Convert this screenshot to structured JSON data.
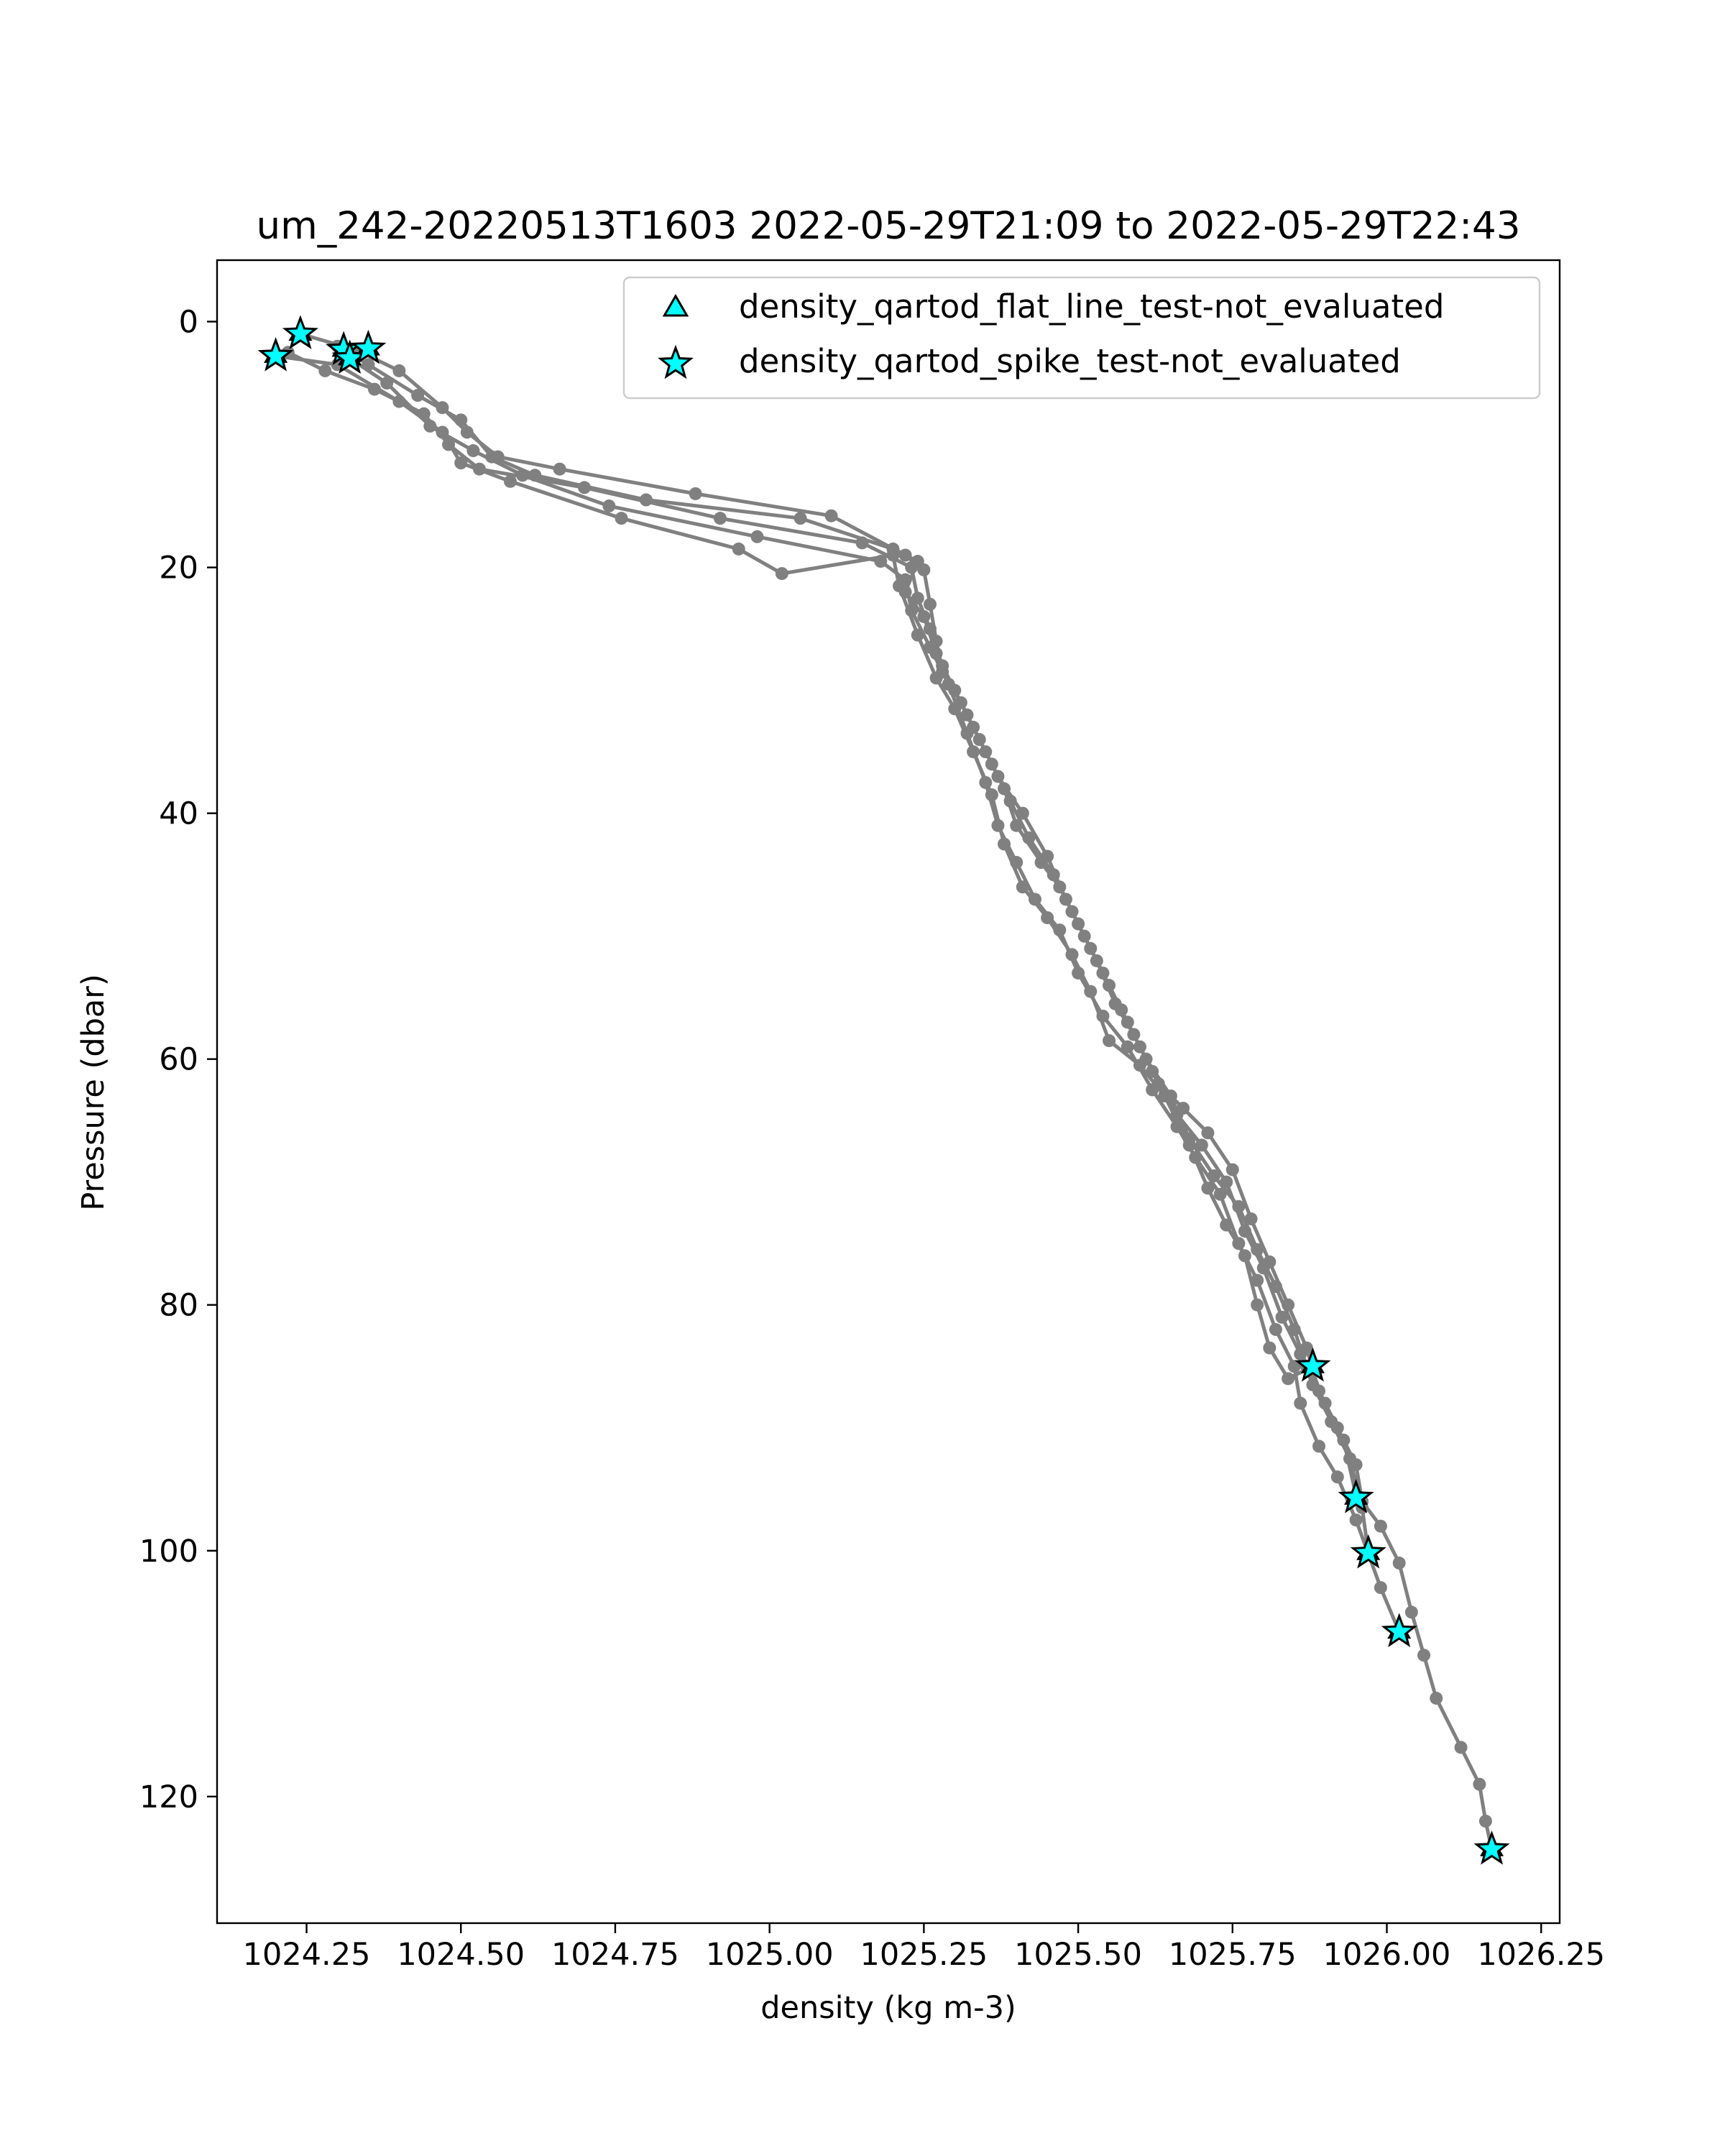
{
  "chart_data": {
    "type": "line",
    "title": "um_242-20220513T1603 2022-05-29T21:09 to 2022-05-29T22:43",
    "xlabel": "density (kg m-3)",
    "ylabel": "Pressure (dbar)",
    "xlim": [
      1024.105,
      1026.28
    ],
    "ylim": [
      130.3,
      -5.0
    ],
    "y_inverted": true,
    "grid": false,
    "legend_position": "top-right",
    "xticks": [
      {
        "value": 1024.25,
        "label": "1024.25"
      },
      {
        "value": 1024.5,
        "label": "1024.50"
      },
      {
        "value": 1024.75,
        "label": "1024.75"
      },
      {
        "value": 1025.0,
        "label": "1025.00"
      },
      {
        "value": 1025.25,
        "label": "1025.25"
      },
      {
        "value": 1025.5,
        "label": "1025.50"
      },
      {
        "value": 1025.75,
        "label": "1025.75"
      },
      {
        "value": 1026.0,
        "label": "1026.00"
      },
      {
        "value": 1026.25,
        "label": "1026.25"
      }
    ],
    "yticks": [
      {
        "value": 0,
        "label": "0"
      },
      {
        "value": 20,
        "label": "20"
      },
      {
        "value": 40,
        "label": "40"
      },
      {
        "value": 60,
        "label": "60"
      },
      {
        "value": 80,
        "label": "80"
      },
      {
        "value": 100,
        "label": "100"
      },
      {
        "value": 120,
        "label": "120"
      }
    ],
    "series": [
      {
        "color": "#808080",
        "points": [
          [
            1024.24,
            1.0
          ],
          [
            1024.33,
            2.3
          ],
          [
            1024.4,
            4.0
          ],
          [
            1024.47,
            7.0
          ],
          [
            1024.51,
            9.0
          ],
          [
            1024.56,
            11.0
          ],
          [
            1024.66,
            12.0
          ],
          [
            1024.88,
            14.0
          ],
          [
            1025.1,
            15.8
          ],
          [
            1025.22,
            19.0
          ],
          [
            1025.25,
            20.2
          ],
          [
            1025.26,
            23.0
          ],
          [
            1025.27,
            26.0
          ],
          [
            1025.28,
            28.5
          ],
          [
            1025.31,
            31.0
          ],
          [
            1025.34,
            34.0
          ],
          [
            1025.37,
            37.0
          ],
          [
            1025.41,
            40.0
          ],
          [
            1025.45,
            43.5
          ],
          [
            1025.48,
            47.0
          ],
          [
            1025.51,
            50.0
          ],
          [
            1025.54,
            53.0
          ],
          [
            1025.57,
            56.0
          ],
          [
            1025.6,
            59.0
          ],
          [
            1025.63,
            62.0
          ],
          [
            1025.67,
            64.0
          ],
          [
            1025.71,
            66.0
          ],
          [
            1025.75,
            69.0
          ],
          [
            1025.78,
            73.0
          ],
          [
            1025.81,
            76.5
          ],
          [
            1025.84,
            80.0
          ],
          [
            1025.87,
            83.5
          ],
          [
            1025.89,
            87.0
          ],
          [
            1025.92,
            90.0
          ],
          [
            1025.95,
            93.0
          ],
          [
            1025.96,
            96.0
          ],
          [
            1025.99,
            98.0
          ],
          [
            1026.02,
            101.0
          ],
          [
            1026.04,
            105.0
          ],
          [
            1026.06,
            108.5
          ],
          [
            1026.08,
            112.0
          ],
          [
            1026.12,
            116.0
          ],
          [
            1026.15,
            119.0
          ],
          [
            1026.16,
            122.0
          ],
          [
            1026.17,
            124.3
          ]
        ]
      },
      {
        "color": "#808080",
        "points": [
          [
            1024.3,
            2.0
          ],
          [
            1024.35,
            3.5
          ],
          [
            1024.43,
            6.0
          ],
          [
            1024.5,
            8.0
          ],
          [
            1024.55,
            11.0
          ],
          [
            1024.62,
            12.5
          ],
          [
            1024.8,
            14.5
          ],
          [
            1025.05,
            16.0
          ],
          [
            1025.2,
            18.5
          ],
          [
            1025.24,
            19.5
          ],
          [
            1025.22,
            22.0
          ],
          [
            1025.25,
            24.0
          ],
          [
            1025.27,
            27.0
          ],
          [
            1025.3,
            30.0
          ],
          [
            1025.33,
            33.0
          ],
          [
            1025.36,
            36.0
          ],
          [
            1025.39,
            39.0
          ],
          [
            1025.42,
            42.0
          ],
          [
            1025.46,
            45.0
          ],
          [
            1025.49,
            48.0
          ],
          [
            1025.52,
            51.0
          ],
          [
            1025.55,
            54.0
          ],
          [
            1025.58,
            57.0
          ],
          [
            1025.61,
            60.0
          ],
          [
            1025.65,
            63.0
          ],
          [
            1025.68,
            66.5
          ],
          [
            1025.72,
            69.5
          ],
          [
            1025.76,
            72.0
          ],
          [
            1025.79,
            75.5
          ],
          [
            1025.82,
            78.5
          ],
          [
            1025.85,
            82.0
          ],
          [
            1025.87,
            85.0
          ],
          [
            1025.9,
            88.0
          ],
          [
            1025.93,
            91.0
          ],
          [
            1025.95,
            95.5
          ]
        ]
      },
      {
        "color": "#808080",
        "points": [
          [
            1024.22,
            2.5
          ],
          [
            1024.28,
            4.0
          ],
          [
            1024.36,
            5.5
          ],
          [
            1024.44,
            7.5
          ],
          [
            1024.48,
            10.0
          ],
          [
            1024.53,
            12.0
          ],
          [
            1024.7,
            13.5
          ],
          [
            1024.92,
            16.0
          ],
          [
            1025.15,
            18.0
          ],
          [
            1025.23,
            20.0
          ],
          [
            1025.24,
            22.5
          ],
          [
            1025.26,
            25.0
          ],
          [
            1025.28,
            28.0
          ],
          [
            1025.32,
            32.0
          ],
          [
            1025.35,
            35.0
          ],
          [
            1025.38,
            38.0
          ],
          [
            1025.4,
            41.0
          ],
          [
            1025.44,
            44.0
          ],
          [
            1025.47,
            46.0
          ],
          [
            1025.5,
            49.0
          ],
          [
            1025.53,
            52.0
          ],
          [
            1025.56,
            55.5
          ],
          [
            1025.59,
            58.0
          ],
          [
            1025.62,
            61.0
          ],
          [
            1025.66,
            64.5
          ],
          [
            1025.7,
            67.0
          ],
          [
            1025.74,
            70.0
          ],
          [
            1025.77,
            74.0
          ],
          [
            1025.8,
            77.0
          ],
          [
            1025.83,
            81.0
          ],
          [
            1025.86,
            84.0
          ],
          [
            1025.88,
            86.5
          ],
          [
            1025.91,
            89.5
          ],
          [
            1025.94,
            92.5
          ],
          [
            1025.96,
            96.5
          ],
          [
            1025.97,
            100.2
          ]
        ]
      },
      {
        "color": "#808080",
        "points": [
          [
            1024.32,
            3.0
          ],
          [
            1024.38,
            5.0
          ],
          [
            1024.45,
            8.5
          ],
          [
            1024.52,
            10.5
          ],
          [
            1024.6,
            12.5
          ],
          [
            1024.74,
            15.0
          ],
          [
            1024.98,
            17.5
          ],
          [
            1025.18,
            19.5
          ],
          [
            1025.22,
            21.0
          ],
          [
            1025.23,
            23.5
          ],
          [
            1025.26,
            26.5
          ],
          [
            1025.29,
            29.5
          ],
          [
            1025.32,
            33.5
          ],
          [
            1025.35,
            37.5
          ],
          [
            1025.37,
            41.0
          ],
          [
            1025.4,
            44.0
          ],
          [
            1025.43,
            47.0
          ],
          [
            1025.47,
            49.5
          ],
          [
            1025.5,
            53.0
          ],
          [
            1025.54,
            56.5
          ],
          [
            1025.58,
            59.0
          ],
          [
            1025.62,
            62.5
          ],
          [
            1025.66,
            65.5
          ],
          [
            1025.69,
            68.0
          ],
          [
            1025.73,
            71.0
          ],
          [
            1025.76,
            75.0
          ],
          [
            1025.79,
            78.0
          ],
          [
            1025.82,
            82.0
          ],
          [
            1025.85,
            85.0
          ],
          [
            1025.86,
            88.0
          ],
          [
            1025.89,
            91.5
          ],
          [
            1025.92,
            94.0
          ],
          [
            1025.95,
            97.5
          ],
          [
            1025.99,
            103.0
          ],
          [
            1026.02,
            106.6
          ]
        ]
      },
      {
        "color": "#808080",
        "points": [
          [
            1024.2,
            2.8
          ],
          [
            1024.3,
            3.5
          ],
          [
            1024.4,
            6.5
          ],
          [
            1024.47,
            9.0
          ],
          [
            1024.5,
            11.5
          ],
          [
            1024.58,
            13.0
          ],
          [
            1024.76,
            16.0
          ],
          [
            1024.95,
            18.5
          ],
          [
            1025.02,
            20.5
          ],
          [
            1025.2,
            19.0
          ],
          [
            1025.21,
            21.5
          ],
          [
            1025.24,
            25.5
          ],
          [
            1025.27,
            29.0
          ],
          [
            1025.3,
            31.5
          ],
          [
            1025.33,
            35.0
          ],
          [
            1025.36,
            38.5
          ],
          [
            1025.38,
            42.5
          ],
          [
            1025.41,
            46.0
          ],
          [
            1025.45,
            48.5
          ],
          [
            1025.49,
            51.5
          ],
          [
            1025.52,
            54.5
          ],
          [
            1025.55,
            58.5
          ],
          [
            1025.6,
            60.5
          ],
          [
            1025.64,
            63.0
          ],
          [
            1025.68,
            67.0
          ],
          [
            1025.71,
            70.5
          ],
          [
            1025.74,
            73.5
          ],
          [
            1025.77,
            76.0
          ],
          [
            1025.79,
            80.0
          ],
          [
            1025.81,
            83.5
          ],
          [
            1025.84,
            86.0
          ],
          [
            1025.88,
            85.0
          ]
        ]
      }
    ],
    "legend": [
      {
        "marker": "triangle",
        "label": "density_qartod_flat_line_test-not_evaluated"
      },
      {
        "marker": "star",
        "label": "density_qartod_spike_test-not_evaluated"
      }
    ],
    "markers": {
      "triangle_color": "#00FFFF",
      "star_color": "#00FFFF",
      "triangles": [
        [
          1024.24,
          1.0
        ],
        [
          1024.31,
          2.3
        ],
        [
          1024.2,
          2.8
        ],
        [
          1024.32,
          3.0
        ],
        [
          1024.35,
          2.2
        ],
        [
          1025.88,
          85.0
        ],
        [
          1025.95,
          95.7
        ],
        [
          1025.97,
          100.2
        ],
        [
          1026.02,
          106.6
        ],
        [
          1026.17,
          124.3
        ]
      ],
      "stars": [
        [
          1024.24,
          1.0
        ],
        [
          1024.31,
          2.3
        ],
        [
          1024.2,
          2.8
        ],
        [
          1024.32,
          3.0
        ],
        [
          1024.35,
          2.2
        ],
        [
          1025.88,
          85.0
        ],
        [
          1025.95,
          95.7
        ],
        [
          1025.97,
          100.2
        ],
        [
          1026.02,
          106.6
        ],
        [
          1026.17,
          124.3
        ]
      ]
    }
  }
}
